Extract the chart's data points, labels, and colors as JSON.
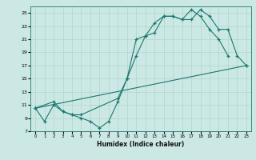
{
  "title": "",
  "xlabel": "Humidex (Indice chaleur)",
  "bg_color": "#cce8e4",
  "line_color": "#1a7870",
  "grid_color": "#aed4ce",
  "xlim": [
    -0.5,
    23.5
  ],
  "ylim": [
    7,
    26
  ],
  "xticks": [
    0,
    1,
    2,
    3,
    4,
    5,
    6,
    7,
    8,
    9,
    10,
    11,
    12,
    13,
    14,
    15,
    16,
    17,
    18,
    19,
    20,
    21,
    22,
    23
  ],
  "yticks": [
    7,
    9,
    11,
    13,
    15,
    17,
    19,
    21,
    23,
    25
  ],
  "line1_x": [
    0,
    1,
    2,
    3,
    4,
    5,
    6,
    7,
    8,
    9,
    10,
    11,
    12,
    13,
    14,
    15,
    16,
    17,
    18,
    19,
    20,
    21
  ],
  "line1_y": [
    10.5,
    8.5,
    11.0,
    10.0,
    9.5,
    9.0,
    8.5,
    7.5,
    8.5,
    11.5,
    15.0,
    18.5,
    21.5,
    22.0,
    24.5,
    24.5,
    24.0,
    25.5,
    24.5,
    22.5,
    21.0,
    18.5
  ],
  "line2_x": [
    0,
    2,
    3,
    4,
    5,
    9,
    10,
    11,
    12,
    13,
    14,
    15,
    16,
    17,
    18,
    19,
    20,
    21,
    22,
    23
  ],
  "line2_y": [
    10.5,
    11.5,
    10.0,
    9.5,
    9.5,
    12.0,
    15.0,
    21.0,
    21.5,
    23.5,
    24.5,
    24.5,
    24.0,
    24.0,
    25.5,
    24.5,
    22.5,
    22.5,
    18.5,
    17.0
  ],
  "line3_x": [
    0,
    23
  ],
  "line3_y": [
    10.5,
    17.0
  ]
}
